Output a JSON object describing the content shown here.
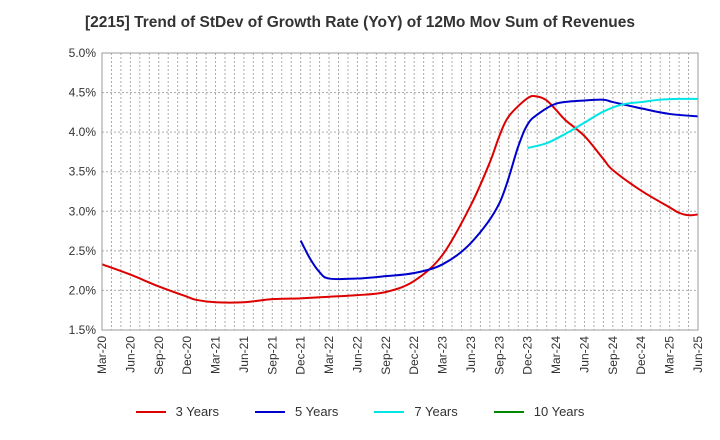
{
  "chart_data": {
    "type": "line",
    "title": "[2215]  Trend of StDev of Growth Rate (YoY) of 12Mo Mov Sum of Revenues",
    "xlabel": "",
    "ylabel": "",
    "ylim": [
      1.5,
      5.0
    ],
    "y_ticks": [
      1.5,
      2.0,
      2.5,
      3.0,
      3.5,
      4.0,
      4.5,
      5.0
    ],
    "y_tick_labels": [
      "1.5%",
      "2.0%",
      "2.5%",
      "3.0%",
      "3.5%",
      "4.0%",
      "4.5%",
      "5.0%"
    ],
    "x_range_months": [
      0,
      63
    ],
    "x_tick_labels": [
      "Mar-20",
      "Jun-20",
      "Sep-20",
      "Dec-20",
      "Mar-21",
      "Jun-21",
      "Sep-21",
      "Dec-21",
      "Mar-22",
      "Jun-22",
      "Sep-22",
      "Dec-22",
      "Mar-23",
      "Jun-23",
      "Sep-23",
      "Dec-23",
      "Mar-24",
      "Jun-24",
      "Sep-24",
      "Dec-24",
      "Mar-25",
      "Jun-25"
    ],
    "x_note": "x values are months elapsed since Mar-20",
    "grid": true,
    "legend_position": "bottom",
    "series": [
      {
        "name": "3 Years",
        "color": "#dd0000",
        "x": [
          0,
          3,
          6,
          9,
          10,
          12,
          15,
          18,
          21,
          24,
          27,
          30,
          33,
          36,
          39,
          41,
          42,
          43,
          45,
          46,
          47,
          48,
          49,
          51,
          53,
          54,
          57,
          60,
          61,
          62,
          63
        ],
        "y": [
          2.33,
          2.2,
          2.05,
          1.92,
          1.88,
          1.85,
          1.85,
          1.89,
          1.9,
          1.92,
          1.94,
          1.98,
          2.12,
          2.45,
          3.08,
          3.62,
          3.95,
          4.2,
          4.43,
          4.45,
          4.4,
          4.28,
          4.15,
          3.95,
          3.66,
          3.52,
          3.26,
          3.05,
          2.98,
          2.95,
          2.96
        ]
      },
      {
        "name": "5 Years",
        "color": "#0000cc",
        "x": [
          21,
          22,
          23,
          24,
          27,
          30,
          33,
          36,
          39,
          42,
          44,
          45,
          46,
          48,
          51,
          53,
          54,
          57,
          60,
          63
        ],
        "y": [
          2.63,
          2.4,
          2.23,
          2.15,
          2.15,
          2.18,
          2.22,
          2.33,
          2.6,
          3.1,
          3.82,
          4.1,
          4.22,
          4.36,
          4.4,
          4.41,
          4.38,
          4.3,
          4.23,
          4.2
        ]
      },
      {
        "name": "7 Years",
        "color": "#00e5e5",
        "x": [
          45,
          47,
          49,
          51,
          53,
          55,
          57,
          59,
          61,
          63
        ],
        "y": [
          3.8,
          3.86,
          3.98,
          4.12,
          4.26,
          4.35,
          4.38,
          4.41,
          4.42,
          4.42
        ]
      },
      {
        "name": "10 Years",
        "color": "#008800",
        "x": [],
        "y": []
      }
    ]
  }
}
